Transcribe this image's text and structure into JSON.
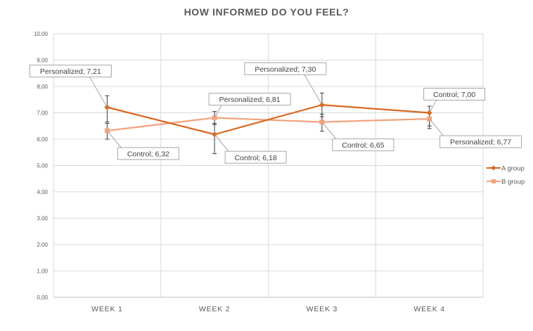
{
  "chart_data": {
    "type": "line",
    "title": "HOW INFORMED DO YOU FEEL?",
    "xlabel": "",
    "ylabel": "",
    "categories": [
      "WEEK 1",
      "WEEK 2",
      "WEEK 3",
      "WEEK 4"
    ],
    "ylim": [
      0,
      10
    ],
    "yticks": [
      "0,00",
      "1,00",
      "2,00",
      "3,00",
      "4,00",
      "5,00",
      "6,00",
      "7,00",
      "8,00",
      "9,00",
      "10,00"
    ],
    "grid": true,
    "legend_position": "right",
    "series": [
      {
        "name": "A group",
        "color": "#d9661e",
        "marker": "diamond",
        "values": [
          7.21,
          6.18,
          7.3,
          7.0
        ],
        "error_low": [
          6.65,
          5.45,
          6.85,
          6.4
        ],
        "error_high": [
          7.65,
          6.6,
          7.75,
          7.25
        ]
      },
      {
        "name": "B group",
        "color": "#f4a37e",
        "marker": "square",
        "values": [
          6.32,
          6.81,
          6.65,
          6.77
        ],
        "error_low": [
          6.0,
          6.55,
          6.3,
          6.5
        ],
        "error_high": [
          6.6,
          7.05,
          6.95,
          7.0
        ]
      }
    ],
    "annotations": [
      {
        "text": "Personalized; 7,21",
        "series": 0,
        "point": 0,
        "anchor": "upper-left"
      },
      {
        "text": "Control; 6,32",
        "series": 1,
        "point": 0,
        "anchor": "lower-right"
      },
      {
        "text": "Personalized; 6,81",
        "series": 1,
        "point": 1,
        "anchor": "upper-right"
      },
      {
        "text": "Control; 6,18",
        "series": 0,
        "point": 1,
        "anchor": "lower-right"
      },
      {
        "text": "Personalized; 7,30",
        "series": 0,
        "point": 2,
        "anchor": "upper-left"
      },
      {
        "text": "Control; 6,65",
        "series": 1,
        "point": 2,
        "anchor": "lower-right"
      },
      {
        "text": "Control; 7,00",
        "series": 0,
        "point": 3,
        "anchor": "upper-right"
      },
      {
        "text": "Personalized; 6,77",
        "series": 1,
        "point": 3,
        "anchor": "lower-right"
      }
    ]
  }
}
